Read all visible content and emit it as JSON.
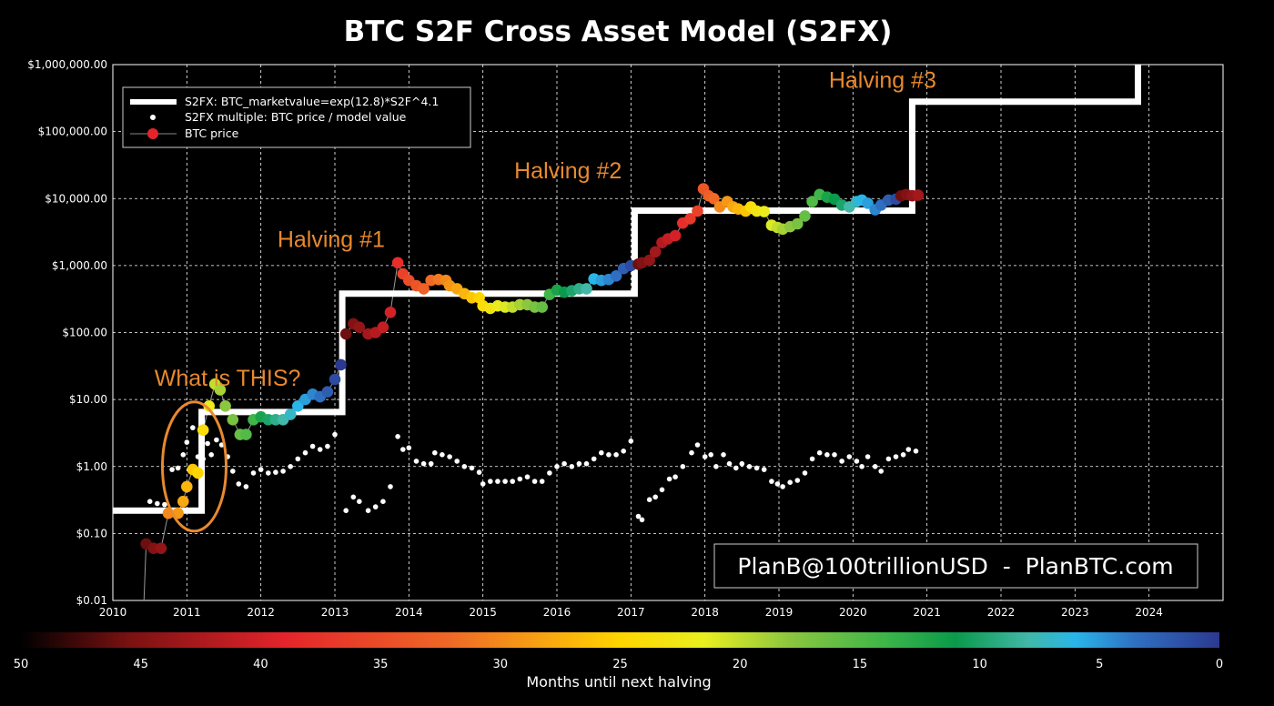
{
  "chart_data": {
    "type": "scatter",
    "title": "BTC S2F Cross Asset Model (S2FX)",
    "xlabel": "",
    "ylabel": "",
    "yscale": "log",
    "ylim": [
      0.01,
      1000000
    ],
    "xlim": [
      2010,
      2025
    ],
    "x_ticks": [
      "2010",
      "2011",
      "2012",
      "2013",
      "2014",
      "2015",
      "2016",
      "2017",
      "2018",
      "2019",
      "2020",
      "2021",
      "2022",
      "2023",
      "2024"
    ],
    "y_ticks": [
      {
        "value": 0.01,
        "label": "$0.01"
      },
      {
        "value": 0.1,
        "label": "$0.10"
      },
      {
        "value": 1,
        "label": "$1.00"
      },
      {
        "value": 10,
        "label": "$10.00"
      },
      {
        "value": 100,
        "label": "$100.00"
      },
      {
        "value": 1000,
        "label": "$1,000.00"
      },
      {
        "value": 10000,
        "label": "$10,000.00"
      },
      {
        "value": 100000,
        "label": "$100,000.00"
      },
      {
        "value": 1000000,
        "label": "$1,000,000.00"
      }
    ],
    "grid": true,
    "legend": {
      "placement": "top-left",
      "entries": [
        {
          "key": "model",
          "label": "S2FX: BTC_marketvalue=exp(12.8)*S2F^4.1"
        },
        {
          "key": "multiple",
          "label": "S2FX multiple: BTC price / model value"
        },
        {
          "key": "price",
          "label": "BTC price"
        }
      ]
    },
    "series": [
      {
        "name": "S2FX: BTC_marketvalue=exp(12.8)*S2F^4.1",
        "kind": "step-line",
        "color": "#ffffff",
        "points": [
          [
            2010.0,
            0.22
          ],
          [
            2011.2,
            0.22
          ],
          [
            2011.2,
            6.5
          ],
          [
            2013.1,
            6.5
          ],
          [
            2013.1,
            380
          ],
          [
            2017.05,
            380
          ],
          [
            2017.05,
            6600
          ],
          [
            2020.8,
            6600
          ],
          [
            2020.8,
            280000
          ],
          [
            2023.85,
            280000
          ],
          [
            2023.85,
            1000000
          ]
        ]
      },
      {
        "name": "S2FX multiple: BTC price / model value",
        "kind": "scatter",
        "color": "#ffffff",
        "points": [
          [
            2010.5,
            0.3
          ],
          [
            2010.6,
            0.28
          ],
          [
            2010.7,
            0.27
          ],
          [
            2010.8,
            0.9
          ],
          [
            2010.88,
            0.95
          ],
          [
            2010.95,
            1.5
          ],
          [
            2011.0,
            2.3
          ],
          [
            2011.08,
            3.8
          ],
          [
            2011.15,
            1.4
          ],
          [
            2011.22,
            1.3
          ],
          [
            2011.28,
            2.2
          ],
          [
            2011.33,
            1.5
          ],
          [
            2011.4,
            2.5
          ],
          [
            2011.47,
            2.1
          ],
          [
            2011.55,
            1.4
          ],
          [
            2011.62,
            0.85
          ],
          [
            2011.7,
            0.55
          ],
          [
            2011.8,
            0.5
          ],
          [
            2011.9,
            0.8
          ],
          [
            2012.0,
            0.9
          ],
          [
            2012.1,
            0.8
          ],
          [
            2012.2,
            0.82
          ],
          [
            2012.3,
            0.85
          ],
          [
            2012.4,
            1.0
          ],
          [
            2012.5,
            1.3
          ],
          [
            2012.6,
            1.6
          ],
          [
            2012.7,
            2.0
          ],
          [
            2012.8,
            1.8
          ],
          [
            2012.9,
            2.0
          ],
          [
            2013.0,
            3.0
          ],
          [
            2013.15,
            0.22
          ],
          [
            2013.25,
            0.35
          ],
          [
            2013.33,
            0.3
          ],
          [
            2013.45,
            0.22
          ],
          [
            2013.55,
            0.25
          ],
          [
            2013.65,
            0.3
          ],
          [
            2013.75,
            0.5
          ],
          [
            2013.85,
            2.8
          ],
          [
            2013.92,
            1.8
          ],
          [
            2014.0,
            1.9
          ],
          [
            2014.1,
            1.2
          ],
          [
            2014.2,
            1.1
          ],
          [
            2014.3,
            1.1
          ],
          [
            2014.35,
            1.6
          ],
          [
            2014.45,
            1.5
          ],
          [
            2014.55,
            1.4
          ],
          [
            2014.65,
            1.2
          ],
          [
            2014.75,
            1.0
          ],
          [
            2014.85,
            0.95
          ],
          [
            2014.95,
            0.82
          ],
          [
            2015.0,
            0.55
          ],
          [
            2015.1,
            0.6
          ],
          [
            2015.2,
            0.6
          ],
          [
            2015.3,
            0.6
          ],
          [
            2015.4,
            0.6
          ],
          [
            2015.5,
            0.65
          ],
          [
            2015.6,
            0.7
          ],
          [
            2015.7,
            0.6
          ],
          [
            2015.8,
            0.6
          ],
          [
            2015.9,
            0.8
          ],
          [
            2016.0,
            1.0
          ],
          [
            2016.1,
            1.1
          ],
          [
            2016.2,
            1.0
          ],
          [
            2016.3,
            1.1
          ],
          [
            2016.4,
            1.1
          ],
          [
            2016.5,
            1.3
          ],
          [
            2016.6,
            1.6
          ],
          [
            2016.7,
            1.5
          ],
          [
            2016.8,
            1.5
          ],
          [
            2016.9,
            1.7
          ],
          [
            2017.0,
            2.4
          ],
          [
            2017.1,
            0.18
          ],
          [
            2017.15,
            0.16
          ],
          [
            2017.25,
            0.32
          ],
          [
            2017.33,
            0.35
          ],
          [
            2017.42,
            0.45
          ],
          [
            2017.52,
            0.65
          ],
          [
            2017.6,
            0.7
          ],
          [
            2017.7,
            1.0
          ],
          [
            2017.82,
            1.6
          ],
          [
            2017.9,
            2.1
          ],
          [
            2018.0,
            1.4
          ],
          [
            2018.08,
            1.5
          ],
          [
            2018.15,
            1.0
          ],
          [
            2018.25,
            1.5
          ],
          [
            2018.33,
            1.1
          ],
          [
            2018.42,
            0.95
          ],
          [
            2018.5,
            1.1
          ],
          [
            2018.6,
            1.0
          ],
          [
            2018.7,
            0.95
          ],
          [
            2018.8,
            0.9
          ],
          [
            2018.9,
            0.6
          ],
          [
            2018.98,
            0.55
          ],
          [
            2019.05,
            0.5
          ],
          [
            2019.15,
            0.58
          ],
          [
            2019.25,
            0.62
          ],
          [
            2019.35,
            0.8
          ],
          [
            2019.45,
            1.3
          ],
          [
            2019.55,
            1.6
          ],
          [
            2019.65,
            1.5
          ],
          [
            2019.75,
            1.5
          ],
          [
            2019.85,
            1.2
          ],
          [
            2019.95,
            1.4
          ],
          [
            2020.05,
            1.2
          ],
          [
            2020.12,
            1.0
          ],
          [
            2020.2,
            1.4
          ],
          [
            2020.3,
            1.0
          ],
          [
            2020.38,
            0.85
          ],
          [
            2020.48,
            1.3
          ],
          [
            2020.58,
            1.4
          ],
          [
            2020.68,
            1.5
          ],
          [
            2020.75,
            1.8
          ],
          [
            2020.85,
            1.7
          ]
        ]
      },
      {
        "name": "BTC price",
        "kind": "scatter",
        "color_scale": "months until next halving",
        "points": [
          [
            2010.45,
            0.07,
            46
          ],
          [
            2010.55,
            0.06,
            45
          ],
          [
            2010.65,
            0.06,
            44
          ],
          [
            2010.75,
            0.2,
            30
          ],
          [
            2010.88,
            0.2,
            29
          ],
          [
            2010.95,
            0.3,
            28
          ],
          [
            2011.0,
            0.5,
            27
          ],
          [
            2011.08,
            0.9,
            26
          ],
          [
            2011.15,
            0.8,
            25
          ],
          [
            2011.22,
            3.5,
            24
          ],
          [
            2011.3,
            8,
            22
          ],
          [
            2011.38,
            17,
            20
          ],
          [
            2011.45,
            14,
            19
          ],
          [
            2011.52,
            8,
            18
          ],
          [
            2011.62,
            5,
            17
          ],
          [
            2011.72,
            3,
            16
          ],
          [
            2011.8,
            3,
            15
          ],
          [
            2011.9,
            5,
            14
          ],
          [
            2012.0,
            5.5,
            12
          ],
          [
            2012.1,
            5,
            10
          ],
          [
            2012.2,
            5,
            9
          ],
          [
            2012.3,
            5,
            8
          ],
          [
            2012.4,
            6,
            7
          ],
          [
            2012.5,
            8,
            6
          ],
          [
            2012.6,
            10,
            5
          ],
          [
            2012.7,
            12,
            4
          ],
          [
            2012.8,
            11,
            3
          ],
          [
            2012.9,
            13,
            2
          ],
          [
            2013.0,
            20,
            1
          ],
          [
            2013.08,
            33,
            0
          ],
          [
            2013.15,
            95,
            46
          ],
          [
            2013.25,
            135,
            45
          ],
          [
            2013.33,
            120,
            44
          ],
          [
            2013.45,
            95,
            43
          ],
          [
            2013.55,
            100,
            42
          ],
          [
            2013.65,
            120,
            41
          ],
          [
            2013.75,
            200,
            40
          ],
          [
            2013.85,
            1100,
            38
          ],
          [
            2013.92,
            750,
            36
          ],
          [
            2014.0,
            600,
            35
          ],
          [
            2014.1,
            500,
            34
          ],
          [
            2014.2,
            450,
            33
          ],
          [
            2014.3,
            600,
            32
          ],
          [
            2014.4,
            620,
            31
          ],
          [
            2014.5,
            600,
            30
          ],
          [
            2014.55,
            500,
            29
          ],
          [
            2014.65,
            450,
            28
          ],
          [
            2014.75,
            380,
            27
          ],
          [
            2014.85,
            330,
            26
          ],
          [
            2014.95,
            330,
            25
          ],
          [
            2015.0,
            250,
            24
          ],
          [
            2015.1,
            230,
            23
          ],
          [
            2015.2,
            250,
            22
          ],
          [
            2015.3,
            240,
            21
          ],
          [
            2015.4,
            240,
            20
          ],
          [
            2015.5,
            260,
            19
          ],
          [
            2015.6,
            260,
            18
          ],
          [
            2015.7,
            240,
            17
          ],
          [
            2015.8,
            240,
            16
          ],
          [
            2015.9,
            370,
            14
          ],
          [
            2016.0,
            430,
            12
          ],
          [
            2016.1,
            400,
            11
          ],
          [
            2016.2,
            420,
            10
          ],
          [
            2016.3,
            450,
            9
          ],
          [
            2016.4,
            450,
            8
          ],
          [
            2016.5,
            630,
            6
          ],
          [
            2016.6,
            600,
            5
          ],
          [
            2016.7,
            620,
            4
          ],
          [
            2016.8,
            700,
            3
          ],
          [
            2016.9,
            900,
            2
          ],
          [
            2017.0,
            1000,
            1
          ],
          [
            2017.1,
            1050,
            46
          ],
          [
            2017.15,
            1100,
            45
          ],
          [
            2017.25,
            1200,
            44
          ],
          [
            2017.33,
            1600,
            43
          ],
          [
            2017.42,
            2200,
            42
          ],
          [
            2017.5,
            2500,
            41
          ],
          [
            2017.6,
            2800,
            40
          ],
          [
            2017.7,
            4300,
            38
          ],
          [
            2017.8,
            5000,
            37
          ],
          [
            2017.9,
            6500,
            36
          ],
          [
            2017.98,
            14000,
            34
          ],
          [
            2018.05,
            11000,
            33
          ],
          [
            2018.12,
            10000,
            32
          ],
          [
            2018.2,
            7500,
            30
          ],
          [
            2018.3,
            9000,
            29
          ],
          [
            2018.38,
            7500,
            28
          ],
          [
            2018.45,
            7000,
            27
          ],
          [
            2018.55,
            6500,
            26
          ],
          [
            2018.62,
            7500,
            24
          ],
          [
            2018.7,
            6500,
            23
          ],
          [
            2018.8,
            6400,
            22
          ],
          [
            2018.9,
            4000,
            21
          ],
          [
            2018.98,
            3700,
            20
          ],
          [
            2019.05,
            3500,
            19
          ],
          [
            2019.15,
            3800,
            18
          ],
          [
            2019.25,
            4200,
            17
          ],
          [
            2019.35,
            5500,
            16
          ],
          [
            2019.45,
            9000,
            15
          ],
          [
            2019.55,
            11500,
            14
          ],
          [
            2019.65,
            10500,
            12
          ],
          [
            2019.75,
            9800,
            11
          ],
          [
            2019.85,
            8000,
            10
          ],
          [
            2019.95,
            7500,
            8
          ],
          [
            2020.05,
            9000,
            7
          ],
          [
            2020.12,
            9500,
            6
          ],
          [
            2020.2,
            8500,
            5
          ],
          [
            2020.3,
            6800,
            4
          ],
          [
            2020.38,
            8000,
            3
          ],
          [
            2020.48,
            9500,
            2
          ],
          [
            2020.58,
            9800,
            1
          ],
          [
            2020.65,
            11000,
            46
          ],
          [
            2020.72,
            11500,
            45
          ],
          [
            2020.8,
            11000,
            44
          ],
          [
            2020.88,
            11200,
            43
          ]
        ]
      }
    ],
    "annotations": [
      {
        "text": "What is THIS?",
        "x": 2011.55,
        "y": 16,
        "color": "#e8892e"
      },
      {
        "text": "Halving #1",
        "x": 2012.95,
        "y": 1900,
        "color": "#e8892e"
      },
      {
        "text": "Halving #2",
        "x": 2016.15,
        "y": 20000,
        "color": "#e8892e"
      },
      {
        "text": "Halving #3",
        "x": 2020.4,
        "y": 450000,
        "color": "#e8892e"
      }
    ],
    "highlight_ellipse": {
      "center_x": 2011.1,
      "center_y": 1.0,
      "color": "#e8892e"
    },
    "colorbar": {
      "title": "Months until next halving",
      "min": 0,
      "max": 50,
      "ticks": [
        "50",
        "45",
        "40",
        "35",
        "30",
        "25",
        "20",
        "15",
        "10",
        "5",
        "0"
      ]
    },
    "credit": "PlanB@100trillionUSD  -  PlanBTC.com"
  }
}
